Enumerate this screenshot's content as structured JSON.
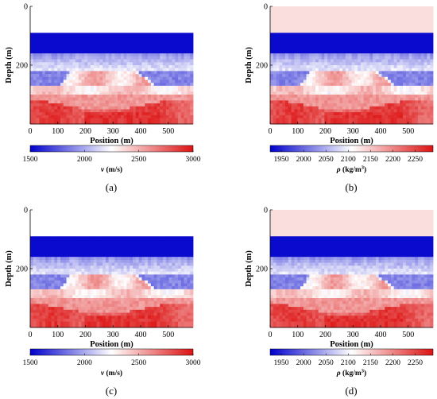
{
  "figure": {
    "panels": [
      {
        "letter": "(a)",
        "colorbar_label": "v (m/s)",
        "colorbar_label_symbol": "v",
        "colorbar_label_unit": " (m/s)",
        "colorbar_ticks": [
          "1500",
          "2000",
          "2500",
          "3000"
        ],
        "colorbar_tick_values": [
          1500,
          2000,
          2500,
          3000
        ],
        "colorbar_range": [
          1500,
          3000
        ]
      },
      {
        "letter": "(b)",
        "colorbar_label": "ρ (kg/m3)",
        "colorbar_label_symbol": "ρ",
        "colorbar_label_unit": " (kg/m",
        "colorbar_label_sup": "3",
        "colorbar_label_close": ")",
        "colorbar_ticks": [
          "1950",
          "2000",
          "2050",
          "2100",
          "2150",
          "2200",
          "2250"
        ],
        "colorbar_tick_values": [
          1950,
          2000,
          2050,
          2100,
          2150,
          2200,
          2250
        ],
        "colorbar_range": [
          1925,
          2290
        ]
      },
      {
        "letter": "(c)",
        "colorbar_label": "v (m/s)",
        "colorbar_label_symbol": "v",
        "colorbar_label_unit": " (m/s)",
        "colorbar_ticks": [
          "1500",
          "2000",
          "2500",
          "3000"
        ],
        "colorbar_tick_values": [
          1500,
          2000,
          2500,
          3000
        ],
        "colorbar_range": [
          1500,
          3000
        ]
      },
      {
        "letter": "(d)",
        "colorbar_label": "ρ (kg/m3)",
        "colorbar_label_symbol": "ρ",
        "colorbar_label_unit": " (kg/m",
        "colorbar_label_sup": "3",
        "colorbar_label_close": ")",
        "colorbar_ticks": [
          "1950",
          "2000",
          "2050",
          "2100",
          "2150",
          "2200",
          "2250"
        ],
        "colorbar_tick_values": [
          1950,
          2000,
          2050,
          2100,
          2150,
          2200,
          2250
        ],
        "colorbar_range": [
          1925,
          2290
        ]
      }
    ]
  },
  "chart_data": [
    {
      "type": "heatmap",
      "panel": "(a)",
      "xlabel": "Position (m)",
      "ylabel": "Depth (m)",
      "x_ticks": [
        0,
        100,
        200,
        300,
        400,
        500
      ],
      "y_ticks": [
        0,
        200
      ],
      "xlim": [
        0,
        590
      ],
      "ylim": [
        400,
        0
      ],
      "colormap": [
        "#0000cc",
        "#ffffff",
        "#dd1111"
      ]
    },
    {
      "type": "heatmap",
      "panel": "(b)",
      "xlabel": "Position (m)",
      "ylabel": "Depth (m)",
      "x_ticks": [
        0,
        100,
        200,
        300,
        400,
        500
      ],
      "y_ticks": [
        0,
        200
      ],
      "xlim": [
        0,
        590
      ],
      "ylim": [
        400,
        0
      ],
      "colormap": [
        "#0000cc",
        "#ffffff",
        "#dd1111"
      ]
    },
    {
      "type": "heatmap",
      "panel": "(c)",
      "xlabel": "Position (m)",
      "ylabel": "Depth (m)",
      "x_ticks": [
        0,
        100,
        200,
        300,
        400,
        500
      ],
      "y_ticks": [
        0,
        200
      ],
      "xlim": [
        0,
        590
      ],
      "ylim": [
        400,
        0
      ],
      "colormap": [
        "#0000cc",
        "#ffffff",
        "#dd1111"
      ]
    },
    {
      "type": "heatmap",
      "panel": "(d)",
      "xlabel": "Position (m)",
      "ylabel": "Depth (m)",
      "x_ticks": [
        0,
        100,
        200,
        300,
        400,
        500
      ],
      "y_ticks": [
        0,
        200
      ],
      "xlim": [
        0,
        590
      ],
      "ylim": [
        400,
        0
      ],
      "colormap": [
        "#0000cc",
        "#ffffff",
        "#dd1111"
      ]
    }
  ]
}
